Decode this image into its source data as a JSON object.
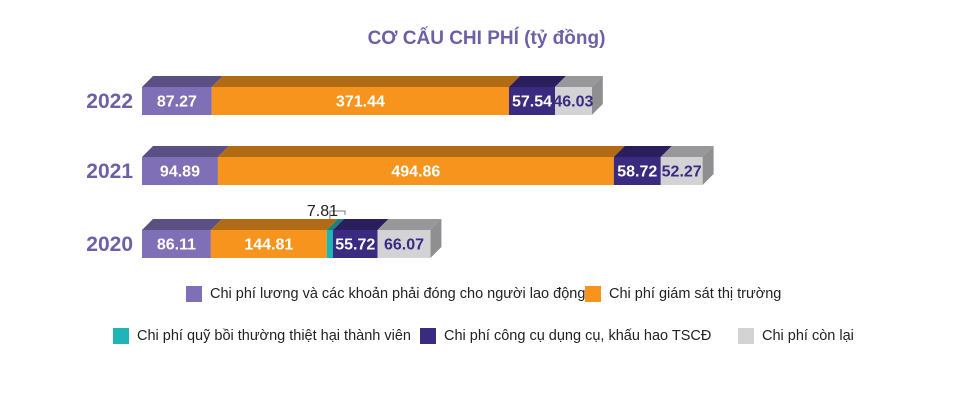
{
  "chart_data": {
    "type": "bar",
    "orientation": "horizontal",
    "stacked": true,
    "title": "CƠ CẤU CHI PHÍ (tỷ đồng)",
    "categories": [
      "2022",
      "2021",
      "2020"
    ],
    "series": [
      {
        "name": "Chi phí lương và các khoản phải đóng cho người lao động",
        "color": "#7F6FB6",
        "values": [
          87.27,
          94.89,
          86.11
        ],
        "labels": [
          "87.27",
          "94.89",
          "86.11"
        ]
      },
      {
        "name": "Chi phí giám sát thị trường",
        "color": "#F7941D",
        "values": [
          371.44,
          494.86,
          144.81
        ],
        "labels": [
          "371.44",
          "494.86",
          "144.81"
        ]
      },
      {
        "name": "Chi phí quỹ bồi thường thiệt hại thành viên",
        "color": "#1FB5B5",
        "values": [
          0,
          0,
          7.81
        ],
        "labels": [
          "",
          "",
          "7.81"
        ]
      },
      {
        "name": "Chi phí công cụ dụng cụ, khấu hao TSCĐ",
        "color": "#3A2A80",
        "values": [
          57.54,
          58.72,
          55.72
        ],
        "labels": [
          "57.54",
          "58.72",
          "55.72"
        ]
      },
      {
        "name": "Chi phí còn lại",
        "color": "#D3D3D6",
        "values": [
          46.03,
          52.27,
          66.07
        ],
        "labels": [
          "46.03",
          "52.27",
          "66.07"
        ]
      }
    ],
    "legend_position": "bottom",
    "grid": false
  }
}
